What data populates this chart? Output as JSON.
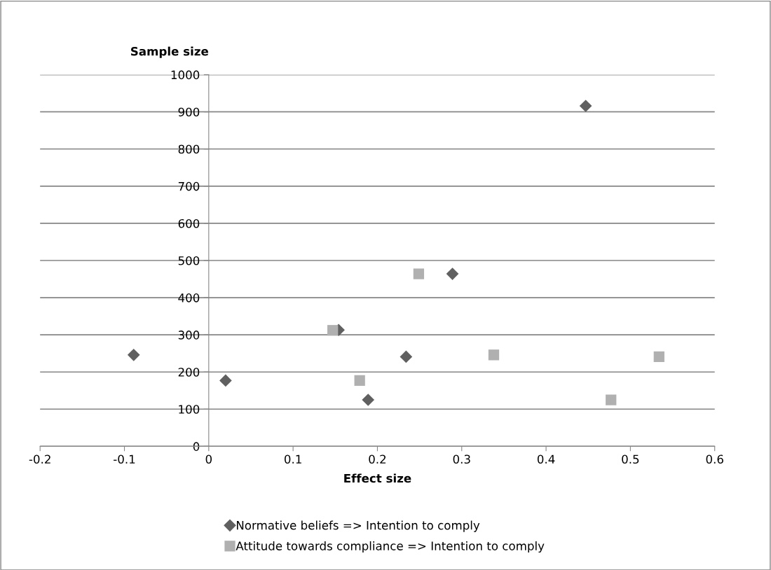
{
  "chart_data": {
    "type": "scatter",
    "xlabel": "Effect size",
    "ylabel": "Sample size",
    "xlim": [
      -0.2,
      0.6
    ],
    "xticks": [
      -0.2,
      -0.1,
      0,
      0.1,
      0.2,
      0.3,
      0.4,
      0.5,
      0.6
    ],
    "ylim": [
      0,
      1000
    ],
    "yticks": [
      0,
      100,
      200,
      300,
      400,
      500,
      600,
      700,
      800,
      900,
      1000
    ],
    "grid": "y",
    "legend": "bottom",
    "series": [
      {
        "name": "Normative beliefs => Intention to comply",
        "color": "#606060",
        "marker": "diamond",
        "x": [
          -0.089,
          0.02,
          0.154,
          0.189,
          0.234,
          0.289,
          0.447
        ],
        "values": [
          246,
          177,
          313,
          125,
          241,
          464,
          916
        ]
      },
      {
        "name": "Attitude towards compliance => Intention to comply",
        "color": "#b0b0b0",
        "marker": "square",
        "x": [
          0.147,
          0.179,
          0.249,
          0.338,
          0.477,
          0.534
        ],
        "values": [
          312,
          177,
          464,
          246,
          125,
          241
        ]
      }
    ]
  }
}
